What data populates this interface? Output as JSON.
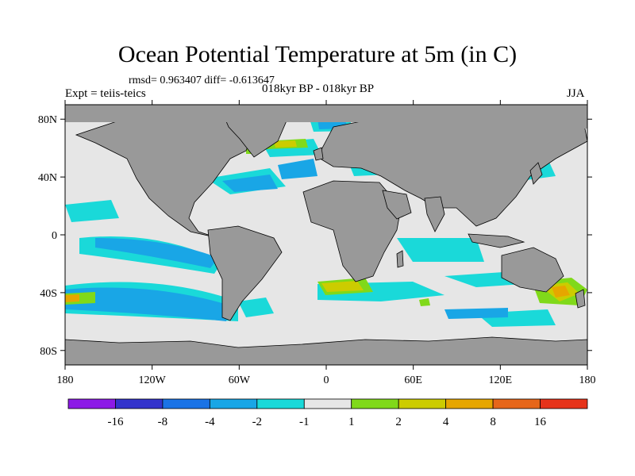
{
  "title": "Ocean Potential Temperature at 5m (in C)",
  "stats_text": "rmsd= 0.963407 diff= -0.613647",
  "experiment_text": "Expt = teiis-teics",
  "period_text": "018kyr BP - 018kyr BP",
  "season_text": "JJA",
  "map": {
    "projection": "cylindrical equidistant",
    "lon_range": [
      -180,
      180
    ],
    "lat_range": [
      -90,
      90
    ],
    "lat_ticks": [
      {
        "value": 80,
        "label": "80N"
      },
      {
        "value": 40,
        "label": "40N"
      },
      {
        "value": 0,
        "label": "0"
      },
      {
        "value": -40,
        "label": "40S"
      },
      {
        "value": -80,
        "label": "80S"
      }
    ],
    "lon_ticks": [
      {
        "value": -180,
        "label": "180"
      },
      {
        "value": -120,
        "label": "120W"
      },
      {
        "value": -60,
        "label": "60W"
      },
      {
        "value": 0,
        "label": "0"
      },
      {
        "value": 60,
        "label": "60E"
      },
      {
        "value": 120,
        "label": "120E"
      },
      {
        "value": 180,
        "label": "180"
      }
    ],
    "land_color": "#999999",
    "ocean_near_zero_color": "#e6e6e6"
  },
  "colorbar": {
    "colors": [
      "#8c1ae6",
      "#3333cc",
      "#1a73e6",
      "#19a6e6",
      "#1ad9d9",
      "#e6e6e6",
      "#80d91a",
      "#cccc00",
      "#e6a600",
      "#e6661a",
      "#e6331a"
    ],
    "labels": [
      "-16",
      "-8",
      "-4",
      "-2",
      "-1",
      "1",
      "2",
      "4",
      "8",
      "16"
    ]
  }
}
